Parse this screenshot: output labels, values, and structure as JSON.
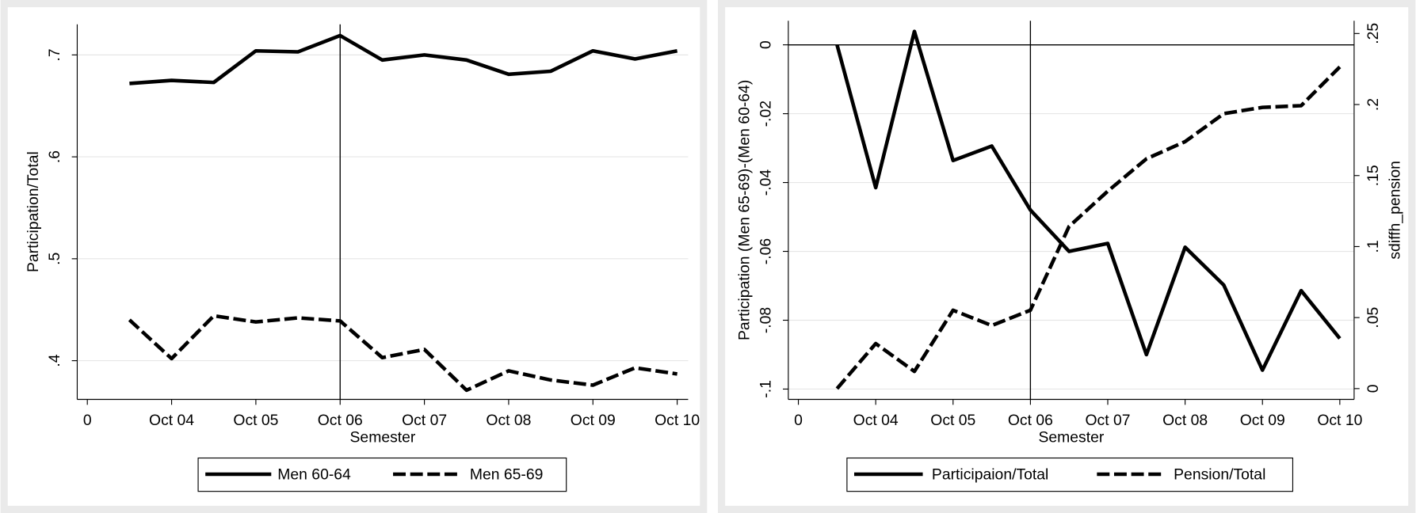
{
  "chart_data": [
    {
      "type": "line",
      "xlabel": "Semester",
      "ylabel": "Participation/Total",
      "x": [
        1,
        2,
        3,
        4,
        5,
        6,
        7,
        8,
        9,
        10,
        11,
        12,
        13,
        14
      ],
      "xlim": [
        -0.24,
        14.26
      ],
      "xticks": [
        0,
        {
          "value": 2,
          "label": "Oct 04"
        },
        {
          "value": 4,
          "label": "Oct 05"
        },
        {
          "value": 6,
          "label": "Oct 06"
        },
        {
          "value": 8,
          "label": "Oct 07"
        },
        {
          "value": 10,
          "label": "Oct 08"
        },
        {
          "value": 12,
          "label": "Oct 09"
        },
        {
          "value": 14,
          "label": "Oct 10"
        }
      ],
      "ylim": [
        0.362,
        0.73
      ],
      "yticks": [
        {
          "value": 0.4,
          "label": ".4"
        },
        {
          "value": 0.5,
          "label": ".5"
        },
        {
          "value": 0.6,
          "label": ".6"
        },
        {
          "value": 0.7,
          "label": ".7"
        }
      ],
      "grid": true,
      "vline": 6,
      "series": [
        {
          "name": "Men 60-64",
          "color": "#000000",
          "line_style": "solid",
          "values": [
            0.672,
            0.675,
            0.673,
            0.704,
            0.703,
            0.719,
            0.695,
            0.7,
            0.695,
            0.681,
            0.684,
            0.704,
            0.696,
            0.704
          ]
        },
        {
          "name": "Men 65-69",
          "color": "#000000",
          "line_style": "dashed",
          "values": [
            0.44,
            0.402,
            0.444,
            0.438,
            0.442,
            0.439,
            0.403,
            0.411,
            0.371,
            0.39,
            0.381,
            0.376,
            0.393,
            0.387
          ]
        }
      ]
    },
    {
      "type": "line",
      "xlabel": "Semester",
      "ylabel": "Participation (Men 65-69)-(Men 60-64)",
      "y2label": "sdiffh_pension",
      "x": [
        1,
        2,
        3,
        4,
        5,
        6,
        7,
        8,
        9,
        10,
        11,
        12,
        13,
        14
      ],
      "xlim": [
        -0.26,
        14.37
      ],
      "xticks": [
        0,
        {
          "value": 2,
          "label": "Oct 04"
        },
        {
          "value": 4,
          "label": "Oct 05"
        },
        {
          "value": 6,
          "label": "Oct 06"
        },
        {
          "value": 8,
          "label": "Oct 07"
        },
        {
          "value": 10,
          "label": "Oct 08"
        },
        {
          "value": 12,
          "label": "Oct 09"
        },
        {
          "value": 14,
          "label": "Oct 10"
        }
      ],
      "ylim": [
        -0.103,
        0.007
      ],
      "yticks": [
        {
          "value": -0.1,
          "label": "-.1"
        },
        {
          "value": -0.08,
          "label": "-.08"
        },
        {
          "value": -0.06,
          "label": "-.06"
        },
        {
          "value": -0.04,
          "label": "-.04"
        },
        {
          "value": -0.02,
          "label": "-.02"
        },
        0
      ],
      "y2lim": [
        -0.0076,
        0.259
      ],
      "y2ticks": [
        0,
        {
          "value": 0.05,
          "label": ".05"
        },
        {
          "value": 0.1,
          "label": ".1"
        },
        {
          "value": 0.15,
          "label": ".15"
        },
        {
          "value": 0.2,
          "label": ".2"
        },
        {
          "value": 0.25,
          "label": ".25"
        }
      ],
      "grid": true,
      "vline": 6,
      "hline": 0,
      "series": [
        {
          "name": "Participaion/Total",
          "color": "#000000",
          "line_style": "solid",
          "values": [
            0,
            -0.0415,
            0.0039,
            -0.0336,
            -0.0294,
            -0.048,
            -0.06,
            -0.0577,
            -0.09,
            -0.0588,
            -0.0698,
            -0.0945,
            -0.0714,
            -0.0853
          ]
        },
        {
          "name": "Pension/Total",
          "color": "#000000",
          "line_style": "dashed",
          "axis": "y2",
          "values": [
            0,
            0.0317,
            0.0121,
            0.0552,
            0.0444,
            0.0552,
            0.1142,
            0.139,
            0.1618,
            0.1739,
            0.1936,
            0.198,
            0.1992,
            0.2265
          ]
        }
      ]
    }
  ]
}
